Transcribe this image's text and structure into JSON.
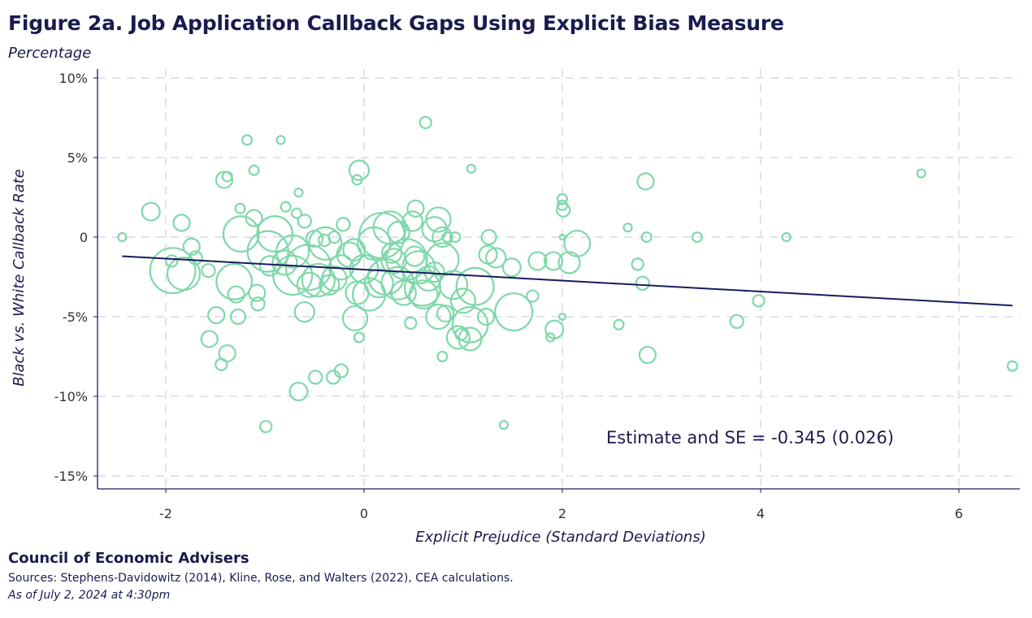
{
  "header": {
    "title": "Figure 2a. Job Application Callback Gaps Using Explicit Bias Measure",
    "unit_label": "Percentage"
  },
  "footer": {
    "organization": "Council of Economic Advisers",
    "sources": "Sources: Stephens-Davidowitz (2014), Kline, Rose, and Walters (2022), CEA calculations.",
    "as_of": "As of July 2, 2024 at 4:30pm"
  },
  "colors": {
    "points": "#7fd8a9",
    "fit_line": "#1a1a5e",
    "text": "#1b1b50",
    "grid": "#e2e2ef"
  },
  "chart_data": {
    "type": "scatter",
    "title": "Figure 2a. Job Application Callback Gaps Using Explicit Bias Measure",
    "xlabel": "Explicit Prejudice (Standard Deviations)",
    "ylabel": "Black vs. White Callback Rate",
    "xlim": [
      -2.7,
      6.6
    ],
    "ylim": [
      -15.8,
      10.5
    ],
    "x_ticks": [
      -2,
      0,
      2,
      4,
      6
    ],
    "x_tick_labels": [
      "-2",
      "0",
      "2",
      "4",
      "6"
    ],
    "y_ticks": [
      10,
      5,
      0,
      -5,
      -10,
      -15
    ],
    "y_tick_labels": [
      "10%",
      "5%",
      "0",
      "-5%",
      "-10%",
      "-15%"
    ],
    "grid": true,
    "marker": "hollow circle sized by weight",
    "annotation": "Estimate and SE = -0.345 (0.026)",
    "fit": {
      "slope": -0.345,
      "intercept": -2.04,
      "x_range": [
        -2.44,
        6.54
      ]
    },
    "points": [
      [
        -2.44,
        0,
        1
      ],
      [
        -2.15,
        1.6,
        4.8
      ],
      [
        -1.84,
        0.9,
        4
      ],
      [
        -1.74,
        -0.6,
        4
      ],
      [
        -1.93,
        -2.1,
        31
      ],
      [
        -1.82,
        -2.3,
        16
      ],
      [
        -1.7,
        -1.3,
        2.6
      ],
      [
        -1.57,
        -2.1,
        2.6
      ],
      [
        -1.94,
        -1.5,
        2
      ],
      [
        -1.56,
        -6.4,
        4
      ],
      [
        -1.49,
        -4.9,
        4
      ],
      [
        -1.38,
        -7.3,
        4
      ],
      [
        -1.44,
        -8.0,
        2
      ],
      [
        -0.99,
        -11.9,
        2
      ],
      [
        -1.18,
        6.1,
        1.4
      ],
      [
        -0.84,
        6.1,
        1
      ],
      [
        -1.41,
        3.6,
        4
      ],
      [
        -1.38,
        3.8,
        1.4
      ],
      [
        -1.11,
        4.2,
        1.4
      ],
      [
        -1.25,
        1.8,
        1.4
      ],
      [
        -1.11,
        1.2,
        4
      ],
      [
        -1.24,
        0.2,
        19
      ],
      [
        -1.31,
        -2.8,
        19
      ],
      [
        -1.29,
        -3.6,
        4
      ],
      [
        -1.27,
        -5.0,
        3.2
      ],
      [
        -1.08,
        -3.5,
        4
      ],
      [
        -1.07,
        -4.2,
        2.6
      ],
      [
        -0.9,
        0.2,
        19
      ],
      [
        -0.97,
        -0.9,
        25
      ],
      [
        -0.79,
        1.9,
        1.4
      ],
      [
        -0.66,
        2.8,
        1
      ],
      [
        -0.68,
        1.5,
        1.4
      ],
      [
        -0.6,
        1.0,
        2.6
      ],
      [
        -0.66,
        -9.7,
        4.8
      ],
      [
        -0.49,
        -8.8,
        2.6
      ],
      [
        -0.31,
        -8.8,
        2.6
      ],
      [
        -0.23,
        -8.4,
        2.6
      ],
      [
        -0.6,
        -4.7,
        5.8
      ],
      [
        -0.56,
        -1.9,
        31
      ],
      [
        -0.72,
        -2.4,
        23
      ],
      [
        -0.39,
        -0.4,
        16
      ],
      [
        -0.46,
        -2.7,
        16
      ],
      [
        -0.72,
        -0.9,
        16
      ],
      [
        -0.23,
        -1.9,
        9
      ],
      [
        -0.21,
        0.8,
        2.6
      ],
      [
        -0.05,
        4.2,
        5.8
      ],
      [
        -0.07,
        3.6,
        1.4
      ],
      [
        -0.07,
        -3.5,
        7.8
      ],
      [
        -0.09,
        -5.1,
        9
      ],
      [
        -0.05,
        -6.3,
        1.4
      ],
      [
        0.1,
        -0.4,
        16
      ],
      [
        0.18,
        0.1,
        31
      ],
      [
        0.26,
        0.6,
        16
      ],
      [
        0.22,
        -2.5,
        19
      ],
      [
        0.43,
        -1.4,
        25
      ],
      [
        0.34,
        -2.9,
        16
      ],
      [
        0.51,
        -1.2,
        5.8
      ],
      [
        0.49,
        1.0,
        5.8
      ],
      [
        0.62,
        7.2,
        2
      ],
      [
        0.52,
        1.8,
        4
      ],
      [
        0.75,
        1.1,
        9
      ],
      [
        0.71,
        0.5,
        9
      ],
      [
        0.79,
        0,
        5.8
      ],
      [
        0.84,
        0,
        1.4
      ],
      [
        0.92,
        0,
        1.4
      ],
      [
        0.55,
        -1.9,
        16
      ],
      [
        0.79,
        -1.4,
        16
      ],
      [
        0.59,
        -3.2,
        19
      ],
      [
        0.71,
        -2.2,
        5.8
      ],
      [
        0.75,
        -5.0,
        9
      ],
      [
        0.82,
        -4.8,
        4
      ],
      [
        0.47,
        -5.4,
        2
      ],
      [
        0.79,
        -7.5,
        1.4
      ],
      [
        0.95,
        -6.3,
        7.8
      ],
      [
        1.07,
        -6.4,
        7.8
      ],
      [
        0.98,
        -6.1,
        2
      ],
      [
        1.07,
        -5.5,
        19
      ],
      [
        1.12,
        -3.1,
        21
      ],
      [
        1.26,
        0,
        3.2
      ],
      [
        1.25,
        -1.1,
        4.8
      ],
      [
        1.33,
        -1.3,
        5.8
      ],
      [
        1.49,
        -1.9,
        4.8
      ],
      [
        1.23,
        -5.0,
        4
      ],
      [
        1.51,
        -4.7,
        21
      ],
      [
        1.7,
        -3.7,
        2
      ],
      [
        1.08,
        4.3,
        1
      ],
      [
        1.75,
        -1.5,
        4.8
      ],
      [
        1.91,
        -1.5,
        4.8
      ],
      [
        2.0,
        2.4,
        1.4
      ],
      [
        2.0,
        2.0,
        1.4
      ],
      [
        2.01,
        1.7,
        2.6
      ],
      [
        2.0,
        0,
        0.4
      ],
      [
        2.15,
        -0.4,
        10
      ],
      [
        2.07,
        -1.6,
        6.8
      ],
      [
        1.92,
        -5.8,
        4.8
      ],
      [
        1.88,
        -6.3,
        1
      ],
      [
        2.0,
        -5.0,
        0.6
      ],
      [
        2.66,
        0.6,
        1
      ],
      [
        2.76,
        -1.7,
        2
      ],
      [
        2.84,
        3.5,
        4
      ],
      [
        2.85,
        0,
        1.4
      ],
      [
        2.81,
        -2.9,
        2.6
      ],
      [
        2.86,
        -7.4,
        4
      ],
      [
        2.57,
        -5.5,
        1.4
      ],
      [
        3.36,
        0,
        1.4
      ],
      [
        3.76,
        -5.3,
        2.6
      ],
      [
        3.98,
        -4.0,
        2
      ],
      [
        4.26,
        0,
        1
      ],
      [
        5.62,
        4.0,
        1
      ],
      [
        6.54,
        -8.1,
        1.4
      ],
      [
        1.41,
        -11.8,
        1
      ],
      [
        -0.3,
        -2.6,
        9
      ],
      [
        -0.15,
        -1.1,
        9
      ],
      [
        0.0,
        -2.0,
        12
      ],
      [
        0.05,
        -3.6,
        16
      ],
      [
        -0.35,
        -3.0,
        5.8
      ],
      [
        0.3,
        -1.5,
        9
      ],
      [
        0.4,
        -3.5,
        9
      ],
      [
        0.65,
        -2.6,
        9
      ],
      [
        0.9,
        -3.0,
        12
      ],
      [
        -0.5,
        -0.1,
        4
      ],
      [
        -0.55,
        -3.0,
        9
      ],
      [
        -0.8,
        -1.6,
        9
      ],
      [
        -0.95,
        -1.8,
        5.8
      ],
      [
        0.15,
        -2.9,
        12
      ],
      [
        0.35,
        0.3,
        7
      ],
      [
        -0.1,
        -0.8,
        7
      ],
      [
        1.0,
        -4.0,
        9
      ],
      [
        0.6,
        -3.6,
        12
      ],
      [
        -0.3,
        0,
        2
      ],
      [
        -0.4,
        -0.2,
        2
      ],
      [
        0.28,
        -1.0,
        5.8
      ]
    ]
  }
}
